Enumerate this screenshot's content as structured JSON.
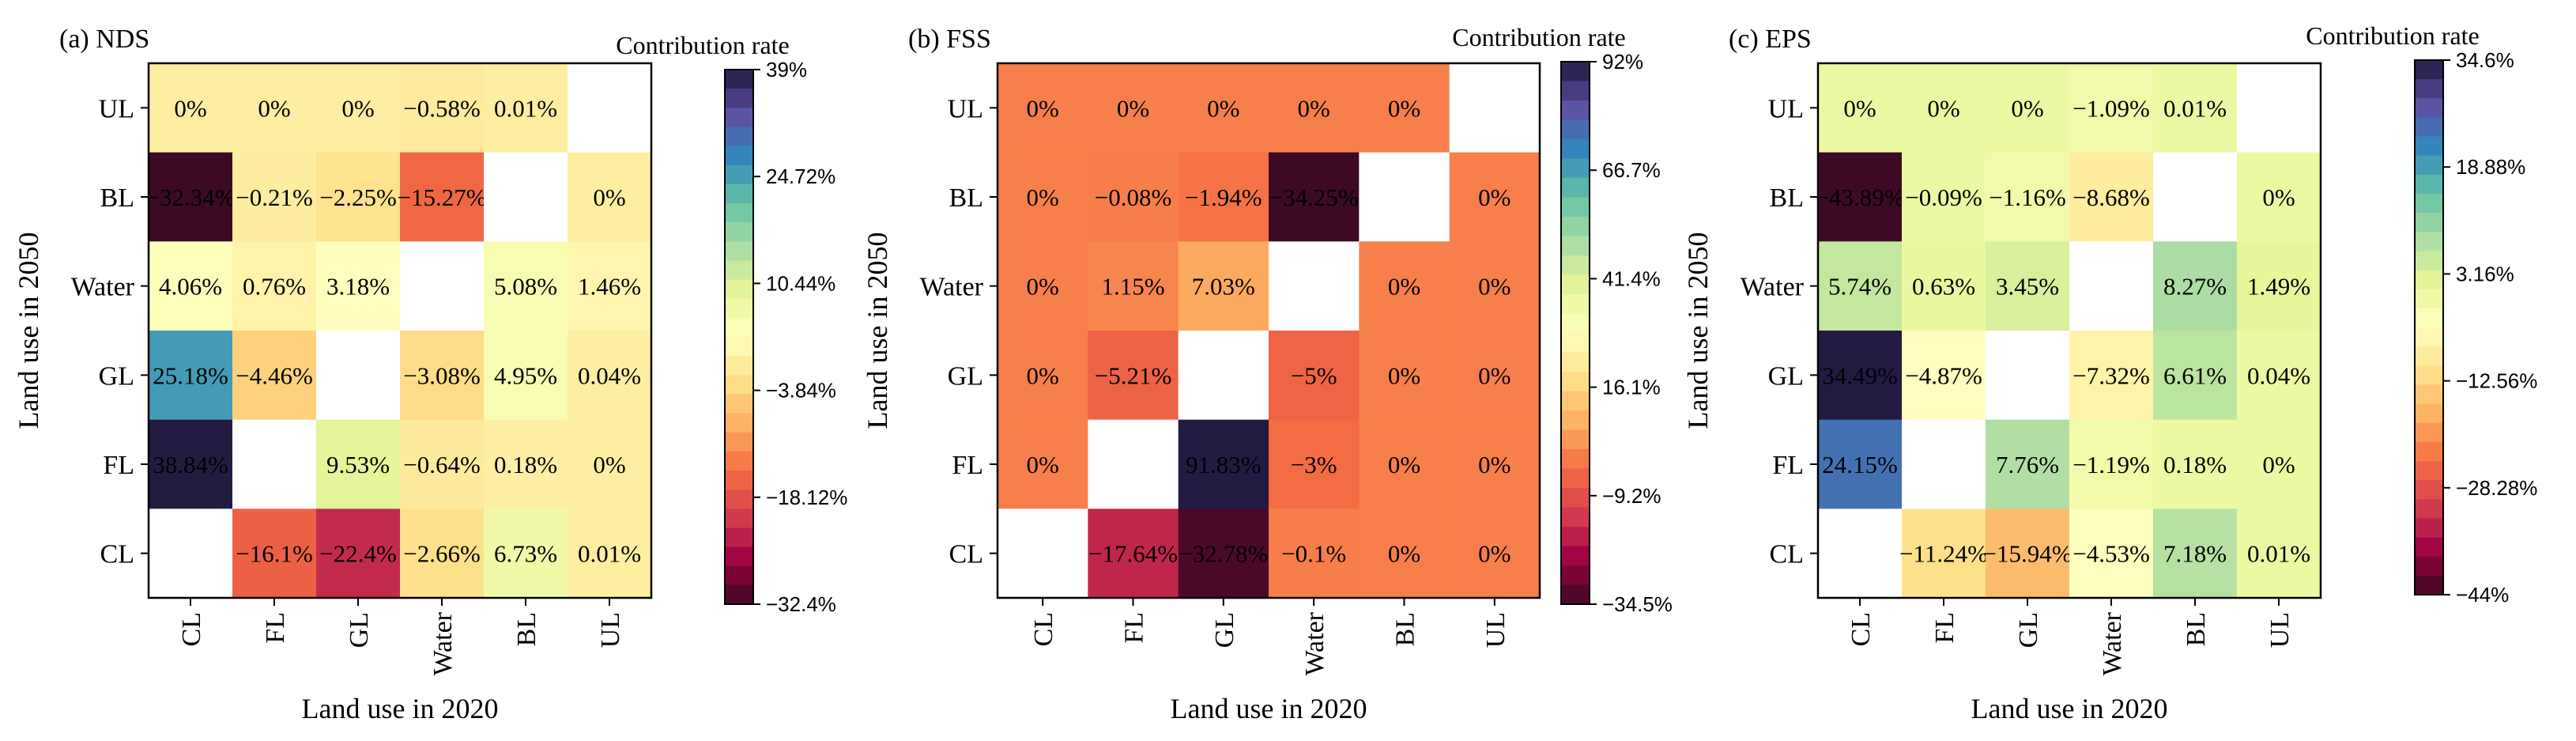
{
  "chart_data": [
    {
      "type": "heatmap",
      "title": "(a) NDS",
      "xlabel": "Land use in 2020",
      "ylabel": "Land use in 2050",
      "x_categories": [
        "CL",
        "FL",
        "GL",
        "Water",
        "BL",
        "UL"
      ],
      "y_categories": [
        "UL",
        "BL",
        "Water",
        "GL",
        "FL",
        "CL"
      ],
      "values": [
        [
          0,
          0,
          0,
          -0.58,
          0.01,
          null
        ],
        [
          -32.34,
          -0.21,
          -2.25,
          -15.27,
          null,
          0
        ],
        [
          4.06,
          0.76,
          3.18,
          null,
          5.08,
          1.46
        ],
        [
          25.18,
          -4.46,
          null,
          -3.08,
          4.95,
          0.04
        ],
        [
          38.84,
          null,
          9.53,
          -0.64,
          0.18,
          0
        ],
        [
          null,
          -16.1,
          -22.4,
          -2.66,
          6.73,
          0.01
        ]
      ],
      "labels": [
        [
          "0%",
          "0%",
          "0%",
          "−0.58%",
          "0.01%",
          ""
        ],
        [
          "−32.34%",
          "−0.21%",
          "−2.25%",
          "−15.27%",
          "",
          "0%"
        ],
        [
          "4.06%",
          "0.76%",
          "3.18%",
          "",
          "5.08%",
          "1.46%"
        ],
        [
          "25.18%",
          "−4.46%",
          "",
          "−3.08%",
          "4.95%",
          "0.04%"
        ],
        [
          "38.84%",
          "",
          "9.53%",
          "−0.64%",
          "0.18%",
          "0%"
        ],
        [
          "",
          "−16.1%",
          "−22.4%",
          "−2.66%",
          "6.73%",
          "0.01%"
        ]
      ],
      "colorbar": {
        "title": "Contribution rate",
        "range": [
          -32.4,
          39
        ],
        "ticks": [
          39,
          24.72,
          10.44,
          -3.84,
          -18.12,
          -32.4
        ],
        "tick_labels": [
          "39%",
          "24.72%",
          "10.44%",
          "−3.84%",
          "−18.12%",
          "−32.4%"
        ]
      },
      "colormap": "Spectral"
    },
    {
      "type": "heatmap",
      "title": "(b) FSS",
      "xlabel": "Land use in 2020",
      "ylabel": "Land use in 2050",
      "x_categories": [
        "CL",
        "FL",
        "GL",
        "Water",
        "BL",
        "UL"
      ],
      "y_categories": [
        "UL",
        "BL",
        "Water",
        "GL",
        "FL",
        "CL"
      ],
      "values": [
        [
          0,
          0,
          0,
          0,
          0,
          null
        ],
        [
          0,
          -0.08,
          -1.94,
          -34.25,
          null,
          0
        ],
        [
          0,
          1.15,
          7.03,
          null,
          0,
          0
        ],
        [
          0,
          -5.21,
          null,
          -5,
          0,
          0
        ],
        [
          0,
          null,
          91.83,
          -3,
          0,
          0
        ],
        [
          null,
          -17.64,
          -32.78,
          -0.1,
          0,
          0
        ]
      ],
      "labels": [
        [
          "0%",
          "0%",
          "0%",
          "0%",
          "0%",
          ""
        ],
        [
          "0%",
          "−0.08%",
          "−1.94%",
          "−34.25%",
          "",
          "0%"
        ],
        [
          "0%",
          "1.15%",
          "7.03%",
          "",
          "0%",
          "0%"
        ],
        [
          "0%",
          "−5.21%",
          "",
          "−5%",
          "0%",
          "0%"
        ],
        [
          "0%",
          "",
          "91.83%",
          "−3%",
          "0%",
          "0%"
        ],
        [
          "",
          "−17.64%",
          "−32.78%",
          "−0.1%",
          "0%",
          "0%"
        ]
      ],
      "colorbar": {
        "title": "Contribution rate",
        "range": [
          -34.5,
          92
        ],
        "ticks": [
          92,
          66.7,
          41.4,
          16.1,
          -9.2,
          -34.5
        ],
        "tick_labels": [
          "92%",
          "66.7%",
          "41.4%",
          "16.1%",
          "−9.2%",
          "−34.5%"
        ]
      },
      "colormap": "Spectral"
    },
    {
      "type": "heatmap",
      "title": "(c) EPS",
      "xlabel": "Land use in 2020",
      "ylabel": "Land use in 2050",
      "x_categories": [
        "CL",
        "FL",
        "GL",
        "Water",
        "BL",
        "UL"
      ],
      "y_categories": [
        "UL",
        "BL",
        "Water",
        "GL",
        "FL",
        "CL"
      ],
      "values": [
        [
          0,
          0,
          0,
          -1.09,
          0.01,
          null
        ],
        [
          -43.89,
          -0.09,
          -1.16,
          -8.68,
          null,
          0
        ],
        [
          5.74,
          0.63,
          3.45,
          null,
          8.27,
          1.49
        ],
        [
          34.49,
          -4.87,
          null,
          -7.32,
          6.61,
          0.04
        ],
        [
          24.15,
          null,
          7.76,
          -1.19,
          0.18,
          0
        ],
        [
          null,
          -11.24,
          -15.94,
          -4.53,
          7.18,
          0.01
        ]
      ],
      "labels": [
        [
          "0%",
          "0%",
          "0%",
          "−1.09%",
          "0.01%",
          ""
        ],
        [
          "−43.89%",
          "−0.09%",
          "−1.16%",
          "−8.68%",
          "",
          "0%"
        ],
        [
          "5.74%",
          "0.63%",
          "3.45%",
          "",
          "8.27%",
          "1.49%"
        ],
        [
          "34.49%",
          "−4.87%",
          "",
          "−7.32%",
          "6.61%",
          "0.04%"
        ],
        [
          "24.15%",
          "",
          "7.76%",
          "−1.19%",
          "0.18%",
          "0%"
        ],
        [
          "",
          "−11.24%",
          "−15.94%",
          "−4.53%",
          "7.18%",
          "0.01%"
        ]
      ],
      "colorbar": {
        "title": "Contribution rate",
        "range": [
          -44,
          34.6
        ],
        "ticks": [
          34.6,
          18.88,
          3.16,
          -12.56,
          -28.28,
          -44
        ],
        "tick_labels": [
          "34.6%",
          "18.88%",
          "3.16%",
          "−12.56%",
          "−28.28%",
          "−44%"
        ]
      },
      "colormap": "Spectral"
    }
  ]
}
